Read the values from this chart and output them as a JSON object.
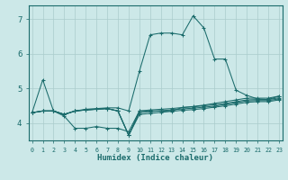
{
  "xlabel": "Humidex (Indice chaleur)",
  "bg_color": "#cce8e8",
  "grid_color": "#aacccc",
  "line_color": "#1a6b6b",
  "xlim": [
    -0.3,
    23.3
  ],
  "ylim": [
    3.5,
    7.4
  ],
  "yticks": [
    4,
    5,
    6,
    7
  ],
  "xticks": [
    0,
    1,
    2,
    3,
    4,
    5,
    6,
    7,
    8,
    9,
    10,
    11,
    12,
    13,
    14,
    15,
    16,
    17,
    18,
    19,
    20,
    21,
    22,
    23
  ],
  "lines": [
    {
      "x": [
        0,
        1,
        2,
        3,
        4,
        5,
        6,
        7,
        8,
        9,
        10,
        11,
        12,
        13,
        14,
        15,
        16,
        17,
        18,
        19,
        20,
        21,
        22,
        23
      ],
      "y": [
        4.3,
        4.35,
        4.35,
        4.25,
        4.35,
        4.4,
        4.42,
        4.44,
        4.44,
        4.35,
        5.5,
        6.55,
        6.6,
        6.6,
        6.55,
        7.1,
        6.75,
        5.85,
        5.85,
        4.95,
        4.8,
        4.7,
        4.68,
        4.78
      ]
    },
    {
      "x": [
        0,
        1,
        2,
        3,
        4,
        5,
        6,
        7,
        8,
        9,
        10,
        11,
        12,
        13,
        14,
        15,
        16,
        17,
        18,
        19,
        20,
        21,
        22,
        23
      ],
      "y": [
        4.3,
        5.25,
        4.35,
        4.2,
        3.85,
        3.85,
        3.9,
        3.85,
        3.85,
        3.75,
        4.35,
        4.35,
        4.35,
        4.35,
        4.45,
        4.48,
        4.52,
        4.57,
        4.62,
        4.67,
        4.72,
        4.72,
        4.72,
        4.78
      ]
    },
    {
      "x": [
        0,
        1,
        2,
        3,
        4,
        5,
        6,
        7,
        8,
        9,
        10,
        11,
        12,
        13,
        14,
        15,
        16,
        17,
        18,
        19,
        20,
        21,
        22,
        23
      ],
      "y": [
        4.3,
        4.35,
        4.35,
        4.25,
        4.35,
        4.38,
        4.4,
        4.42,
        4.35,
        3.65,
        4.35,
        4.38,
        4.4,
        4.42,
        4.45,
        4.47,
        4.5,
        4.53,
        4.57,
        4.62,
        4.67,
        4.68,
        4.68,
        4.73
      ]
    },
    {
      "x": [
        0,
        1,
        2,
        3,
        4,
        5,
        6,
        7,
        8,
        9,
        10,
        11,
        12,
        13,
        14,
        15,
        16,
        17,
        18,
        19,
        20,
        21,
        22,
        23
      ],
      "y": [
        4.3,
        4.35,
        4.35,
        4.25,
        4.35,
        4.38,
        4.4,
        4.42,
        4.35,
        3.65,
        4.3,
        4.33,
        4.36,
        4.38,
        4.41,
        4.43,
        4.46,
        4.49,
        4.54,
        4.59,
        4.64,
        4.65,
        4.65,
        4.7
      ]
    },
    {
      "x": [
        0,
        1,
        2,
        3,
        4,
        5,
        6,
        7,
        8,
        9,
        10,
        11,
        12,
        13,
        14,
        15,
        16,
        17,
        18,
        19,
        20,
        21,
        22,
        23
      ],
      "y": [
        4.3,
        4.35,
        4.35,
        4.25,
        4.35,
        4.38,
        4.4,
        4.42,
        4.35,
        3.65,
        4.25,
        4.28,
        4.31,
        4.34,
        4.37,
        4.39,
        4.42,
        4.46,
        4.5,
        4.55,
        4.6,
        4.62,
        4.62,
        4.67
      ]
    }
  ]
}
